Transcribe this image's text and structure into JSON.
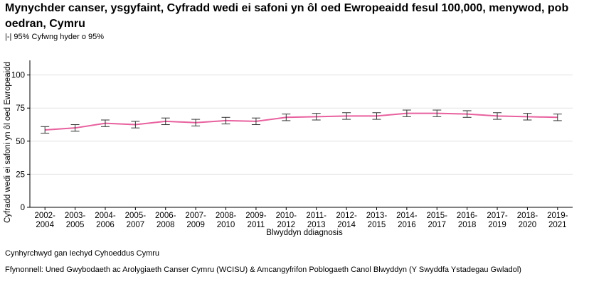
{
  "title": "Mynychder canser, ysgyfaint, Cyfradd wedi ei safoni yn ôl oed Ewropeaidd fesul 100,000, menywod, pob oedran, Cymru",
  "subtitle": "|-| 95% Cyfwng hyder o 95%",
  "colors": {
    "line": "#e8609e",
    "errorbar": "#333333",
    "gridline": "#e3e3e3",
    "axis": "#000000"
  },
  "chart_data": {
    "type": "line",
    "xlabel": "Blwyddyn ddiagnosis",
    "ylabel": "Cyfradd wedi ei safoni yn ôl oed Ewropeaidd",
    "ylim": [
      0,
      110
    ],
    "yticks": [
      0,
      25,
      50,
      75,
      100
    ],
    "grid": "horizontal",
    "categories": [
      [
        "2002-",
        "2004"
      ],
      [
        "2003-",
        "2005"
      ],
      [
        "2004-",
        "2006"
      ],
      [
        "2005-",
        "2007"
      ],
      [
        "2006-",
        "2008"
      ],
      [
        "2007-",
        "2009"
      ],
      [
        "2008-",
        "2010"
      ],
      [
        "2009-",
        "2011"
      ],
      [
        "2010-",
        "2012"
      ],
      [
        "2011-",
        "2013"
      ],
      [
        "2012-",
        "2014"
      ],
      [
        "2013-",
        "2015"
      ],
      [
        "2014-",
        "2016"
      ],
      [
        "2015-",
        "2017"
      ],
      [
        "2016-",
        "2018"
      ],
      [
        "2017-",
        "2019"
      ],
      [
        "2018-",
        "2020"
      ],
      [
        "2019-",
        "2021"
      ]
    ],
    "values": [
      58.5,
      60.0,
      63.5,
      62.5,
      65.0,
      64.0,
      65.5,
      65.0,
      68.0,
      68.5,
      69.0,
      69.0,
      71.0,
      71.0,
      70.5,
      69.0,
      68.5,
      68.0
    ],
    "ci_lower": [
      56.0,
      57.5,
      61.0,
      60.0,
      62.5,
      61.5,
      63.0,
      62.5,
      65.5,
      66.0,
      66.5,
      66.5,
      68.5,
      68.5,
      68.0,
      66.5,
      66.0,
      65.5
    ],
    "ci_upper": [
      61.0,
      62.5,
      66.0,
      65.0,
      67.5,
      66.5,
      68.0,
      67.5,
      70.5,
      71.0,
      71.5,
      71.5,
      73.5,
      73.5,
      73.0,
      71.5,
      71.0,
      70.5
    ]
  },
  "footer": {
    "credit": "Cynhyrchwyd gan Iechyd Cyhoeddus Cymru",
    "source": "Ffynonnell: Uned Gwybodaeth ac Arolygiaeth Canser Cymru (WCISU) & Amcangyfrifon Poblogaeth Canol Blwyddyn (Y Swyddfa Ystadegau Gwladol)"
  }
}
